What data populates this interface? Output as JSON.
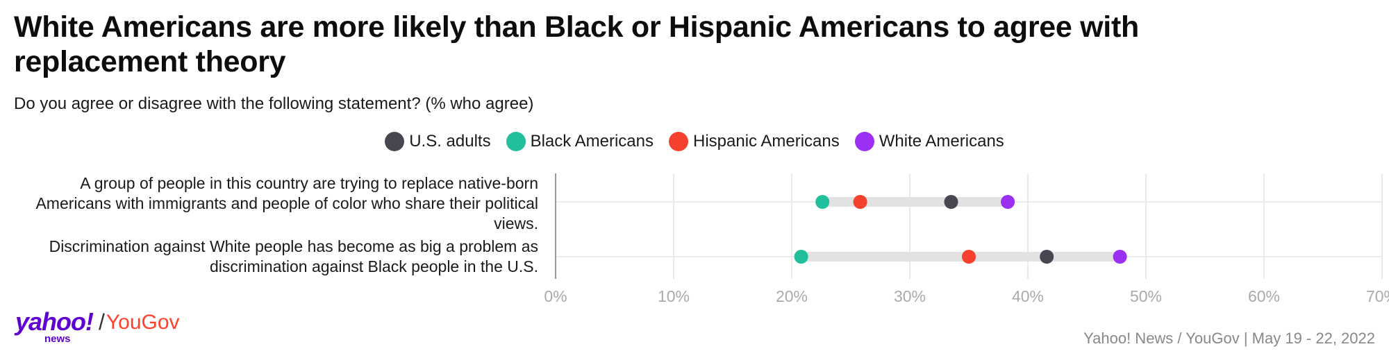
{
  "title": "White Americans are more likely than Black or Hispanic Americans to agree with replacement theory",
  "subtitle": "Do you agree or disagree with the following statement? (% who agree)",
  "source": "Yahoo! News / YouGov | May 19 - 22, 2022",
  "logo": {
    "yahoo": "yahoo!",
    "news": "news",
    "slash": "/",
    "yougov": "YouGov"
  },
  "chart_data": {
    "type": "scatter",
    "style": "dot plot",
    "title": "White Americans are more likely than Black or Hispanic Americans to agree with replacement theory",
    "subtitle": "Do you agree or disagree with the following statement? (% who agree)",
    "categories": [
      "A group of people in this country are trying to replace native-born Americans with immigrants and people of color who share their political views.",
      "Discrimination against White people has become as big a problem as discrimination against Black people in the U.S."
    ],
    "series": [
      {
        "name": "U.S. adults",
        "color": "#474751",
        "values": [
          33.5,
          41.6
        ]
      },
      {
        "name": "Black Americans",
        "color": "#21bf9b",
        "values": [
          22.6,
          20.8
        ]
      },
      {
        "name": "Hispanic Americans",
        "color": "#f5412d",
        "values": [
          25.8,
          35.0
        ]
      },
      {
        "name": "White Americans",
        "color": "#9b30f2",
        "values": [
          38.3,
          47.8
        ]
      }
    ],
    "xlim": [
      0,
      70
    ],
    "xticks": [
      0,
      10,
      20,
      30,
      40,
      50,
      60,
      70
    ],
    "xtick_labels": [
      "0%",
      "10%",
      "20%",
      "30%",
      "40%",
      "50%",
      "60%",
      "70%"
    ],
    "grid": true,
    "legend": "top-center"
  }
}
